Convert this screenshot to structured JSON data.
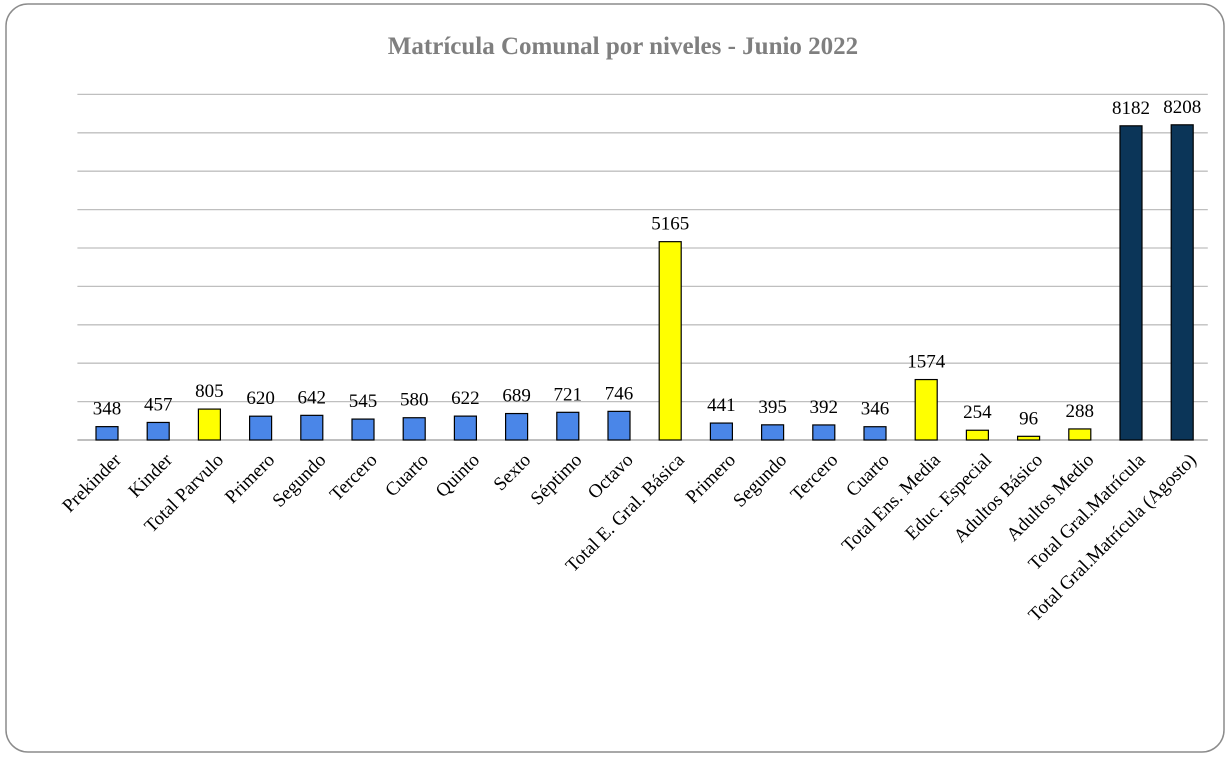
{
  "chart_data": {
    "type": "bar",
    "title": "Matrícula Comunal por niveles - Junio 2022",
    "categories": [
      "Prekinder",
      "Kinder",
      "Total Parvulo",
      "Primero",
      "Segundo",
      "Tercero",
      "Cuarto",
      "Quinto",
      "Sexto",
      "Séptimo",
      "Octavo",
      "Total E. Gral. Básica",
      "Primero",
      "Segundo",
      "Tercero",
      "Cuarto",
      "Total Ens. Media",
      "Educ. Especial",
      "Adultos Básico",
      "Adultos Medio",
      "Total Gral.Matrícula",
      "Total Gral.Matrícula (Agosto)"
    ],
    "values": [
      348,
      457,
      805,
      620,
      642,
      545,
      580,
      622,
      689,
      721,
      746,
      5165,
      441,
      395,
      392,
      346,
      1574,
      254,
      96,
      288,
      8182,
      8208
    ],
    "colors": [
      "#4a86e8",
      "#4a86e8",
      "#ffff00",
      "#4a86e8",
      "#4a86e8",
      "#4a86e8",
      "#4a86e8",
      "#4a86e8",
      "#4a86e8",
      "#4a86e8",
      "#4a86e8",
      "#ffff00",
      "#4a86e8",
      "#4a86e8",
      "#4a86e8",
      "#4a86e8",
      "#ffff00",
      "#ffff00",
      "#ffff00",
      "#ffff00",
      "#0b3558",
      "#0b3558"
    ],
    "ylim": [
      0,
      9000
    ],
    "yticks": [
      0,
      1000,
      2000,
      3000,
      4000,
      5000,
      6000,
      7000,
      8000,
      9000
    ],
    "grid": true
  }
}
